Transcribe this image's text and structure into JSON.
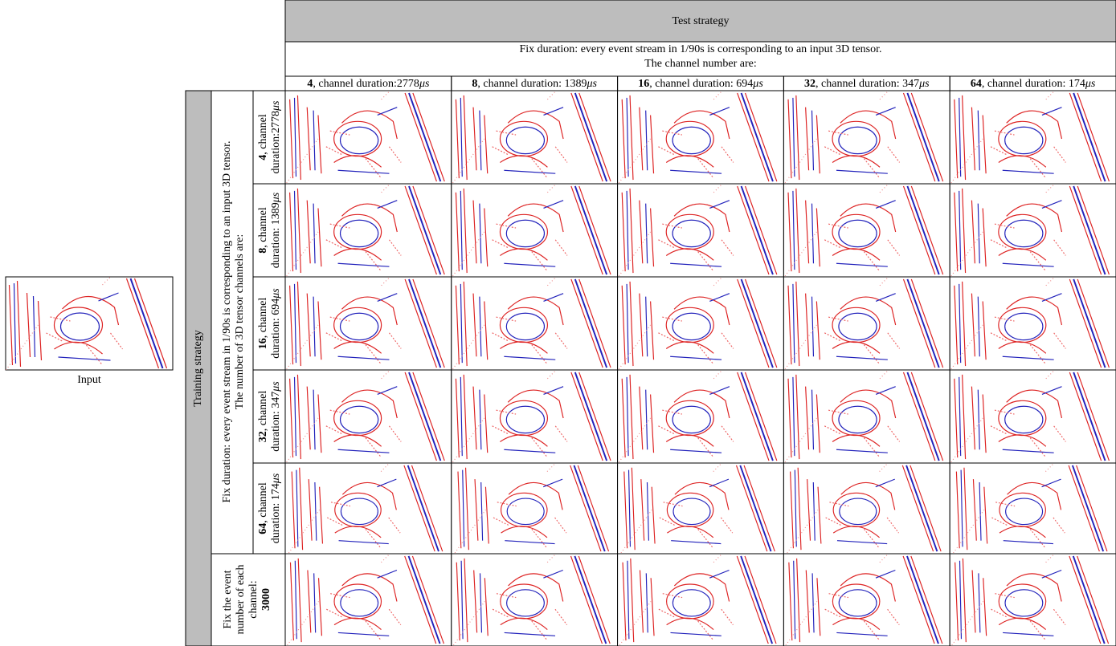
{
  "input_label": "Input",
  "test": {
    "title": "Test strategy",
    "line1": "Fix duration: every event stream in 1/90s is corresponding to an input 3D tensor.",
    "line2": "The channel number are:",
    "columns": [
      {
        "channels": "4",
        "text": ", channel duration:2778",
        "unit": "μs"
      },
      {
        "channels": "8",
        "text": ", channel duration: 1389",
        "unit": "μs"
      },
      {
        "channels": "16",
        "text": ", channel duration: 694",
        "unit": "μs"
      },
      {
        "channels": "32",
        "text": ", channel duration: 347",
        "unit": "μs"
      },
      {
        "channels": "64",
        "text": ", channel duration: 174",
        "unit": "μs"
      }
    ]
  },
  "training": {
    "title": "Training strategy",
    "line1": "Fix duration: every event stream in 1/90s is corresponding to an input 3D tensor.",
    "line2": "The number of 3D tensor channels are:",
    "rows": [
      {
        "channels": "4",
        "line1": ", channel",
        "line2": "duration:2778",
        "unit": "μs"
      },
      {
        "channels": "8",
        "line1": ", channel",
        "line2": "duration: 1389",
        "unit": "μs"
      },
      {
        "channels": "16",
        "line1": ", channel",
        "line2": "duration: 694",
        "unit": "μs"
      },
      {
        "channels": "32",
        "line1": ", channel",
        "line2": "duration: 347",
        "unit": "μs"
      },
      {
        "channels": "64",
        "line1": ", channel",
        "line2": "duration: 174",
        "unit": "μs"
      }
    ],
    "fixed": {
      "line1": "Fix the event",
      "line2": "number of each",
      "line3": "channel:",
      "count": "3000"
    }
  }
}
